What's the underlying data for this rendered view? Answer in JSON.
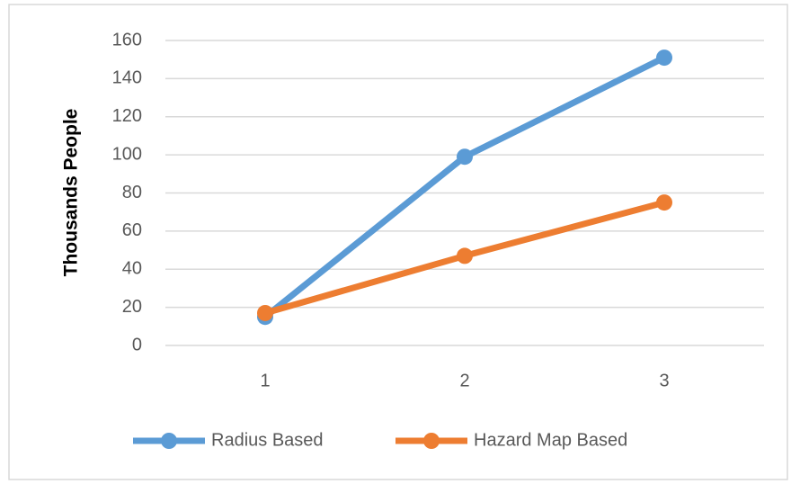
{
  "chart_data": {
    "type": "line",
    "y_label": "Thousands People",
    "categories": [
      "1",
      "2",
      "3"
    ],
    "series": [
      {
        "name": "Radius Based",
        "color": "#5b9bd5",
        "values": [
          15,
          99,
          151
        ]
      },
      {
        "name": "Hazard Map Based",
        "color": "#ed7d31",
        "values": [
          17,
          47,
          75
        ]
      }
    ],
    "ylim": [
      0,
      160
    ],
    "yticks": [
      0,
      20,
      40,
      60,
      80,
      100,
      120,
      140,
      160
    ],
    "grid": true,
    "legend": "bottom"
  }
}
